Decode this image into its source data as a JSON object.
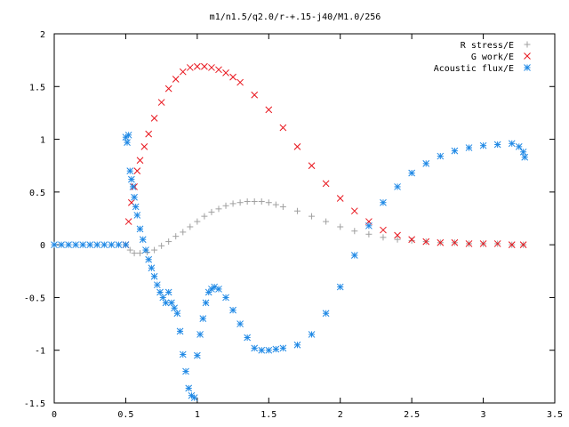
{
  "chart_data": {
    "type": "scatter",
    "title": "m1/n1.5/q2.0/r-+.15-j40/M1.0/256",
    "xlabel": "",
    "ylabel": "",
    "xlim": [
      0,
      3.5
    ],
    "ylim": [
      -1.5,
      2
    ],
    "x_ticks": [
      0,
      0.5,
      1,
      1.5,
      2,
      2.5,
      3,
      3.5
    ],
    "x_tick_labels": [
      "0",
      "0.5",
      "1",
      "1.5",
      "2",
      "2.5",
      "3",
      "3.5"
    ],
    "y_ticks": [
      -1.5,
      -1,
      -0.5,
      0,
      0.5,
      1,
      1.5,
      2
    ],
    "y_tick_labels": [
      "-1.5",
      "-1",
      "-0.5",
      "0",
      "0.5",
      "1",
      "1.5",
      "2"
    ],
    "grid": false,
    "legend_position": "top-right",
    "series": [
      {
        "name": "R stress/E",
        "marker": "plus",
        "color": "#a0a0a0",
        "x": [
          0.5,
          0.53,
          0.56,
          0.6,
          0.65,
          0.7,
          0.75,
          0.8,
          0.85,
          0.9,
          0.95,
          1.0,
          1.05,
          1.1,
          1.15,
          1.2,
          1.25,
          1.3,
          1.35,
          1.4,
          1.45,
          1.5,
          1.55,
          1.6,
          1.7,
          1.8,
          1.9,
          2.0,
          2.1,
          2.2,
          2.3,
          2.4,
          2.5,
          2.6,
          2.7,
          2.8,
          2.9,
          3.0,
          3.1,
          3.2,
          3.28
        ],
        "y": [
          0.0,
          -0.05,
          -0.08,
          -0.08,
          -0.07,
          -0.05,
          -0.01,
          0.03,
          0.08,
          0.12,
          0.17,
          0.22,
          0.27,
          0.31,
          0.34,
          0.37,
          0.39,
          0.4,
          0.41,
          0.41,
          0.41,
          0.4,
          0.38,
          0.36,
          0.32,
          0.27,
          0.22,
          0.17,
          0.13,
          0.1,
          0.07,
          0.05,
          0.04,
          0.03,
          0.02,
          0.02,
          0.01,
          0.01,
          0.01,
          0.0,
          0.0
        ]
      },
      {
        "name": "G work/E",
        "marker": "cross",
        "color": "#e8141c",
        "x": [
          0.5,
          0.52,
          0.54,
          0.56,
          0.58,
          0.6,
          0.63,
          0.66,
          0.7,
          0.75,
          0.8,
          0.85,
          0.9,
          0.95,
          1.0,
          1.05,
          1.1,
          1.15,
          1.2,
          1.25,
          1.3,
          1.4,
          1.5,
          1.6,
          1.7,
          1.8,
          1.9,
          2.0,
          2.1,
          2.2,
          2.3,
          2.4,
          2.5,
          2.6,
          2.7,
          2.8,
          2.9,
          3.0,
          3.1,
          3.2,
          3.28
        ],
        "y": [
          0.0,
          0.22,
          0.4,
          0.55,
          0.7,
          0.8,
          0.93,
          1.05,
          1.2,
          1.35,
          1.48,
          1.57,
          1.64,
          1.68,
          1.69,
          1.69,
          1.68,
          1.66,
          1.63,
          1.59,
          1.54,
          1.42,
          1.28,
          1.11,
          0.93,
          0.75,
          0.58,
          0.44,
          0.32,
          0.22,
          0.14,
          0.09,
          0.05,
          0.03,
          0.02,
          0.02,
          0.01,
          0.01,
          0.01,
          0.0,
          0.0
        ]
      },
      {
        "name": "Acoustic flux/E",
        "marker": "star",
        "color": "#1e88e5",
        "x": [
          0.0,
          0.05,
          0.1,
          0.15,
          0.2,
          0.25,
          0.3,
          0.35,
          0.4,
          0.45,
          0.5,
          0.5,
          0.51,
          0.52,
          0.53,
          0.54,
          0.55,
          0.56,
          0.57,
          0.58,
          0.6,
          0.62,
          0.64,
          0.66,
          0.68,
          0.7,
          0.72,
          0.74,
          0.76,
          0.78,
          0.8,
          0.82,
          0.84,
          0.86,
          0.88,
          0.9,
          0.92,
          0.94,
          0.96,
          0.98,
          1.0,
          1.02,
          1.04,
          1.06,
          1.08,
          1.1,
          1.12,
          1.15,
          1.2,
          1.25,
          1.3,
          1.35,
          1.4,
          1.45,
          1.5,
          1.55,
          1.6,
          1.7,
          1.8,
          1.9,
          2.0,
          2.1,
          2.2,
          2.3,
          2.4,
          2.5,
          2.6,
          2.7,
          2.8,
          2.9,
          3.0,
          3.1,
          3.2,
          3.25,
          3.28,
          3.29
        ],
        "y": [
          0.0,
          0.0,
          0.0,
          0.0,
          0.0,
          0.0,
          0.0,
          0.0,
          0.0,
          0.0,
          0.0,
          1.02,
          0.97,
          1.04,
          0.7,
          0.62,
          0.55,
          0.45,
          0.36,
          0.28,
          0.15,
          0.05,
          -0.05,
          -0.14,
          -0.22,
          -0.3,
          -0.38,
          -0.45,
          -0.5,
          -0.55,
          -0.45,
          -0.55,
          -0.6,
          -0.65,
          -0.82,
          -1.04,
          -1.2,
          -1.36,
          -1.43,
          -1.45,
          -1.05,
          -0.85,
          -0.7,
          -0.55,
          -0.45,
          -0.42,
          -0.4,
          -0.42,
          -0.5,
          -0.62,
          -0.75,
          -0.88,
          -0.98,
          -1.0,
          -1.0,
          -0.99,
          -0.98,
          -0.95,
          -0.85,
          -0.65,
          -0.4,
          -0.1,
          0.18,
          0.4,
          0.55,
          0.68,
          0.77,
          0.84,
          0.89,
          0.92,
          0.94,
          0.95,
          0.96,
          0.93,
          0.88,
          0.83
        ]
      }
    ]
  }
}
